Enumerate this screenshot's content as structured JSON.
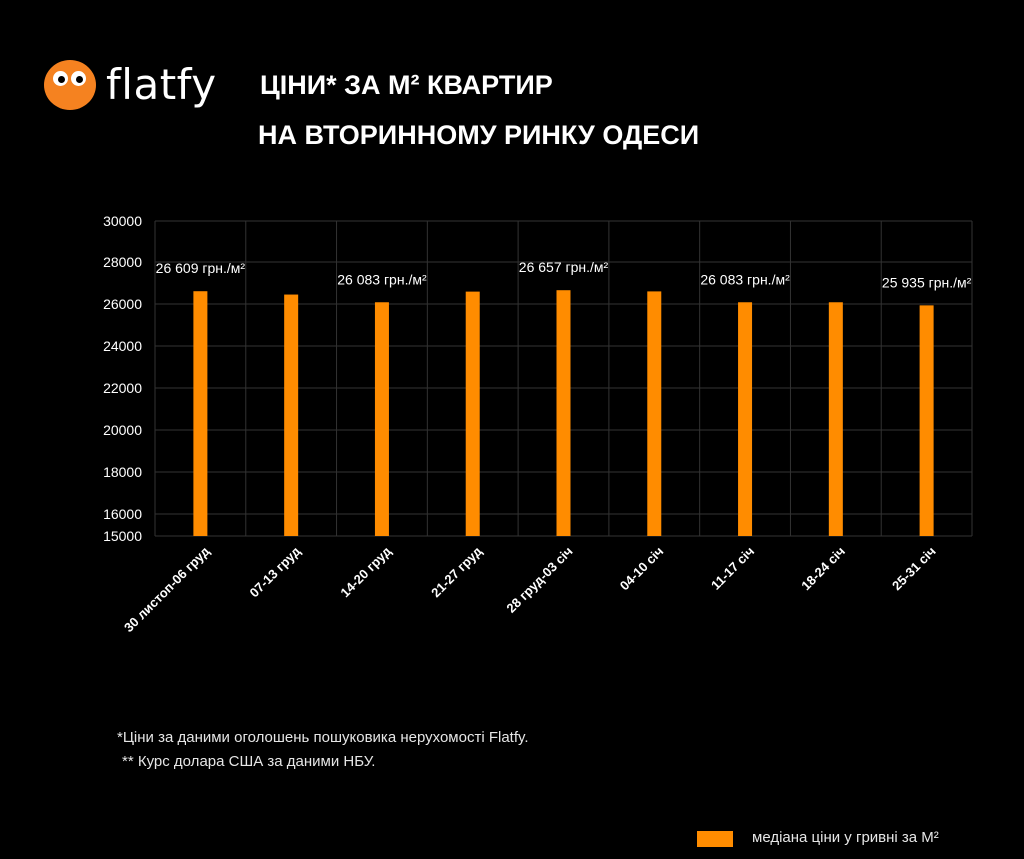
{
  "brand": {
    "name": "flatfy",
    "logo_icon": "flatfy-eyes-icon"
  },
  "title_line1": "ЦІНИ* ЗА М² КВАРТИР",
  "title_line2": "НА ВТОРИННОМУ РИНКУ ОДЕСИ",
  "footnotes": {
    "line1": "*Ціни за даними оголошень пошуковика нерухомості Flatfy.",
    "line2": "** Курс долара США за даними НБУ."
  },
  "legend": {
    "label": "медіана ціни у гривні за М²"
  },
  "colors": {
    "bar": "#ff8c00",
    "background": "#000000",
    "grid": "#333333",
    "logo": "#f58220"
  },
  "chart_data": {
    "type": "bar",
    "categories": [
      "30 листоп-06 груд",
      "07-13 груд",
      "14-20 груд",
      "21-27 груд",
      "28 груд-03 січ",
      "04-10 січ",
      "11-17 січ",
      "18-24 січ",
      "25-31 січ"
    ],
    "series": [
      {
        "name": "медіана ціни у гривні за М²",
        "values": [
          26609,
          26450,
          26083,
          26590,
          26657,
          26600,
          26083,
          26083,
          25935
        ]
      }
    ],
    "data_labels": [
      "26 609 грн./м²",
      "",
      "26 083 грн./м²",
      "",
      "26 657 грн./м²",
      "",
      "26 083 грн./м²",
      "",
      "25 935 грн./м²"
    ],
    "y_ticks": [
      15000,
      16000,
      18000,
      20000,
      22000,
      24000,
      26000,
      28000,
      30000
    ],
    "ylim": [
      15000,
      30000
    ],
    "grid": true,
    "legend_position": "bottom-right"
  }
}
